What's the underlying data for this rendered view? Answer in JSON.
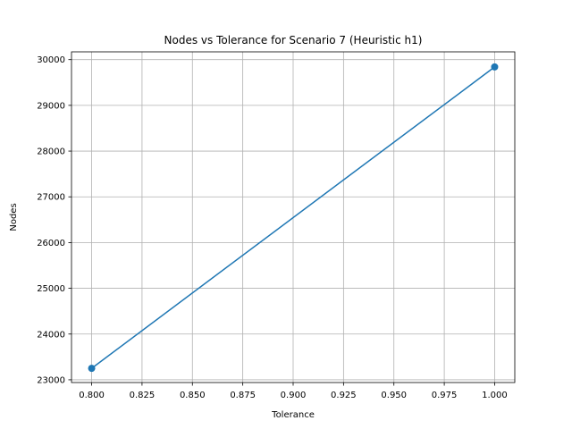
{
  "chart_data": {
    "type": "line",
    "title": "Nodes vs Tolerance for Scenario 7 (Heuristic h1)",
    "xlabel": "Tolerance",
    "ylabel": "Nodes",
    "xlim": [
      0.79,
      1.01
    ],
    "ylim": [
      22940,
      30170
    ],
    "x_ticks": [
      0.8,
      0.825,
      0.85,
      0.875,
      0.9,
      0.925,
      0.95,
      0.975,
      1.0
    ],
    "x_tick_labels": [
      "0.800",
      "0.825",
      "0.850",
      "0.875",
      "0.900",
      "0.925",
      "0.950",
      "0.975",
      "1.000"
    ],
    "y_ticks": [
      23000,
      24000,
      25000,
      26000,
      27000,
      28000,
      29000,
      30000
    ],
    "y_tick_labels": [
      "23000",
      "24000",
      "25000",
      "26000",
      "27000",
      "28000",
      "29000",
      "30000"
    ],
    "grid": true,
    "series": [
      {
        "color": "#1f77b4",
        "marker": "circle",
        "x": [
          0.8,
          1.0
        ],
        "y": [
          23250,
          29840
        ]
      }
    ]
  }
}
